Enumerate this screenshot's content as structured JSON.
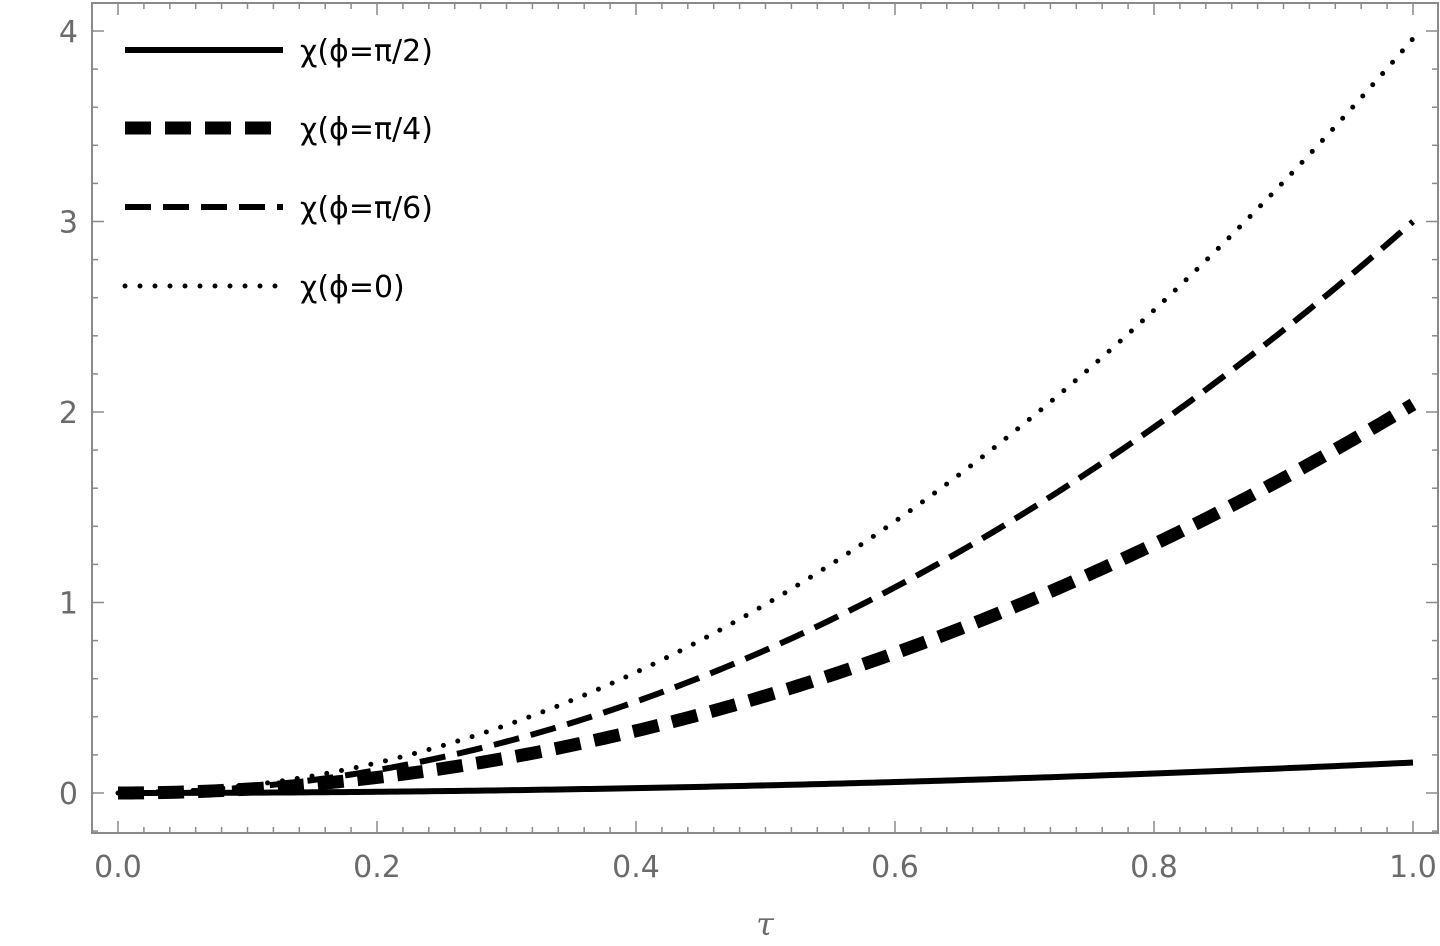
{
  "chart_data": {
    "type": "line",
    "xlabel": "τ",
    "ylabel": "",
    "xlim": [
      0.0,
      1.0
    ],
    "ylim": [
      -0.2,
      4.15
    ],
    "x_ticks": [
      "0.0",
      "0.2",
      "0.4",
      "0.6",
      "0.8",
      "1.0"
    ],
    "y_ticks": [
      "0",
      "1",
      "2",
      "3",
      "4"
    ],
    "grid": false,
    "legend": "top-left",
    "x": [
      0.0,
      0.1,
      0.2,
      0.3,
      0.4,
      0.5,
      0.6,
      0.7,
      0.8,
      0.9,
      1.0
    ],
    "series": [
      {
        "name": "χ(ϕ=π/2)",
        "style": "solid",
        "values": [
          0.0,
          0.0016,
          0.0064,
          0.0144,
          0.0256,
          0.04,
          0.0576,
          0.0784,
          0.1024,
          0.1296,
          0.16
        ]
      },
      {
        "name": "χ(ϕ=π/4)",
        "style": "thick-dashed",
        "values": [
          0.0,
          0.0204,
          0.0816,
          0.1836,
          0.3264,
          0.51,
          0.7344,
          0.9996,
          1.3056,
          1.6524,
          2.04
        ]
      },
      {
        "name": "χ(ϕ=π/6)",
        "style": "dashed",
        "values": [
          0.0,
          0.03,
          0.12,
          0.27,
          0.48,
          0.75,
          1.08,
          1.47,
          1.92,
          2.43,
          3.0
        ]
      },
      {
        "name": "χ(ϕ=0)",
        "style": "dotted",
        "values": [
          0.0,
          0.0396,
          0.1584,
          0.3564,
          0.6336,
          0.99,
          1.4256,
          1.9404,
          2.5344,
          3.2076,
          3.96
        ]
      }
    ]
  }
}
